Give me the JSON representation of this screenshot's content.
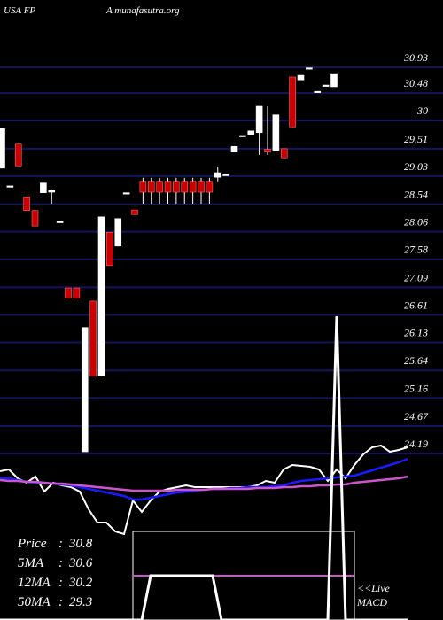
{
  "chart_data": {
    "type": "candlestick",
    "title": "USA FP",
    "subtitle": "A munafasutra.org",
    "up_color": "#ffffff",
    "down_color": "#cc0000",
    "grid": true,
    "grid_color": "#14145a",
    "ylim": [
      24.19,
      30.93
    ],
    "yticks": [
      30.93,
      30.48,
      30,
      29.51,
      29.03,
      28.54,
      28.06,
      27.58,
      27.09,
      26.61,
      26.13,
      25.64,
      25.16,
      24.67,
      24.19
    ],
    "categories": [
      null,
      null,
      null,
      null,
      null,
      null,
      null,
      null,
      null,
      null,
      null,
      null,
      null,
      null,
      null,
      null,
      null,
      null,
      null,
      null,
      null,
      null,
      null,
      null,
      null,
      null,
      null,
      null,
      null,
      null,
      null,
      null,
      null,
      null,
      null,
      null,
      null,
      null,
      null,
      null,
      null
    ],
    "open": [
      29.17,
      28.86,
      29.59,
      28.67,
      28.43,
      28.74,
      28.75,
      28.24,
      27.08,
      27.08,
      24.22,
      26.85,
      25.54,
      28.05,
      27.81,
      28.74,
      28.44,
      28.94,
      28.94,
      28.94,
      28.94,
      28.94,
      28.94,
      28.94,
      28.94,
      28.94,
      29.01,
      29.06,
      29.45,
      29.74,
      29.76,
      29.79,
      29.5,
      29.48,
      29.51,
      30.76,
      30.71,
      30.92,
      30.51,
      30.62,
      30.59
    ],
    "high": [
      29.86,
      28.86,
      29.59,
      28.67,
      28.43,
      28.91,
      28.8,
      28.24,
      27.08,
      27.08,
      26.39,
      26.85,
      28.32,
      28.05,
      28.29,
      28.74,
      28.44,
      29.0,
      29.0,
      29.0,
      29.0,
      29.0,
      29.0,
      29.0,
      29.0,
      29.0,
      29.2,
      29.06,
      29.55,
      29.74,
      29.82,
      30.25,
      30.25,
      30.1,
      29.51,
      30.76,
      30.79,
      30.92,
      30.51,
      30.62,
      30.82
    ],
    "low": [
      29.17,
      28.86,
      29.21,
      28.43,
      28.16,
      28.74,
      28.55,
      28.24,
      26.9,
      26.9,
      24.22,
      25.54,
      25.54,
      27.47,
      27.81,
      28.74,
      28.36,
      28.55,
      28.55,
      28.55,
      28.55,
      28.55,
      28.55,
      28.55,
      28.55,
      28.55,
      28.94,
      29.06,
      29.45,
      29.74,
      29.76,
      29.4,
      29.4,
      29.48,
      29.35,
      29.89,
      30.71,
      30.92,
      30.51,
      30.62,
      30.59
    ],
    "close": [
      29.86,
      28.86,
      29.21,
      28.43,
      28.16,
      28.91,
      28.78,
      28.24,
      26.9,
      26.9,
      26.39,
      25.54,
      28.32,
      27.47,
      28.29,
      28.74,
      28.36,
      28.75,
      28.75,
      28.75,
      28.75,
      28.75,
      28.75,
      28.75,
      28.75,
      28.75,
      29.09,
      29.06,
      29.55,
      29.74,
      29.82,
      30.25,
      29.45,
      30.1,
      29.35,
      29.89,
      30.79,
      30.92,
      30.51,
      30.62,
      30.82
    ],
    "ma_panel": {
      "y2lim": [
        -10,
        110
      ],
      "series": [
        {
          "name": "Price",
          "color": "#ffffff",
          "values": [
            68,
            70,
            60,
            55,
            62,
            45,
            55,
            52,
            50,
            45,
            25,
            10,
            10,
            0,
            -3,
            35,
            22,
            35,
            45,
            48,
            50,
            52,
            50,
            50,
            50,
            50,
            50,
            50,
            50,
            52,
            57,
            55,
            70,
            75,
            74,
            73,
            70,
            57,
            70,
            60,
            75,
            87,
            95,
            97,
            90,
            92,
            95
          ]
        },
        {
          "name": "12MA",
          "color": "#1a1aff",
          "values": [
            60,
            60,
            58,
            56,
            55,
            55,
            54,
            53,
            52,
            50,
            48,
            46,
            44,
            42,
            40,
            36,
            36,
            38,
            40,
            42,
            44,
            45,
            46,
            47,
            48,
            48,
            49,
            49,
            50,
            50,
            50,
            51,
            52,
            55,
            57,
            58,
            59,
            60,
            61,
            62,
            63,
            66,
            69,
            72,
            75,
            78,
            82
          ]
        },
        {
          "name": "50MA",
          "color": "#cc55cc",
          "values": [
            58,
            57,
            57,
            56,
            56,
            55,
            54,
            54,
            53,
            52,
            51,
            50,
            49,
            48,
            47,
            46,
            46,
            46,
            46,
            46,
            47,
            47,
            47,
            47,
            48,
            48,
            48,
            48,
            48,
            49,
            49,
            49,
            50,
            50,
            51,
            51,
            52,
            52,
            53,
            53,
            55,
            56,
            57,
            58,
            59,
            60,
            62
          ]
        }
      ]
    },
    "macd": {
      "color": "#ffffff",
      "values": [
        0,
        0,
        0,
        0,
        0,
        0,
        0,
        0,
        0,
        0,
        0,
        0,
        0,
        0,
        0,
        0,
        0,
        50,
        50,
        50,
        50,
        50,
        50,
        50,
        50,
        0,
        0,
        0,
        0,
        0,
        0,
        0,
        0,
        0,
        0,
        0,
        0,
        0,
        343,
        0,
        0,
        0,
        0,
        0,
        0,
        0,
        0
      ],
      "label": "MACD",
      "live": "<<Live"
    },
    "stats": [
      {
        "label": "Price",
        "value": 30.8
      },
      {
        "label": "5MA",
        "value": 30.6
      },
      {
        "label": "12MA",
        "value": 30.2
      },
      {
        "label": "50MA",
        "value": 29.3
      }
    ]
  }
}
